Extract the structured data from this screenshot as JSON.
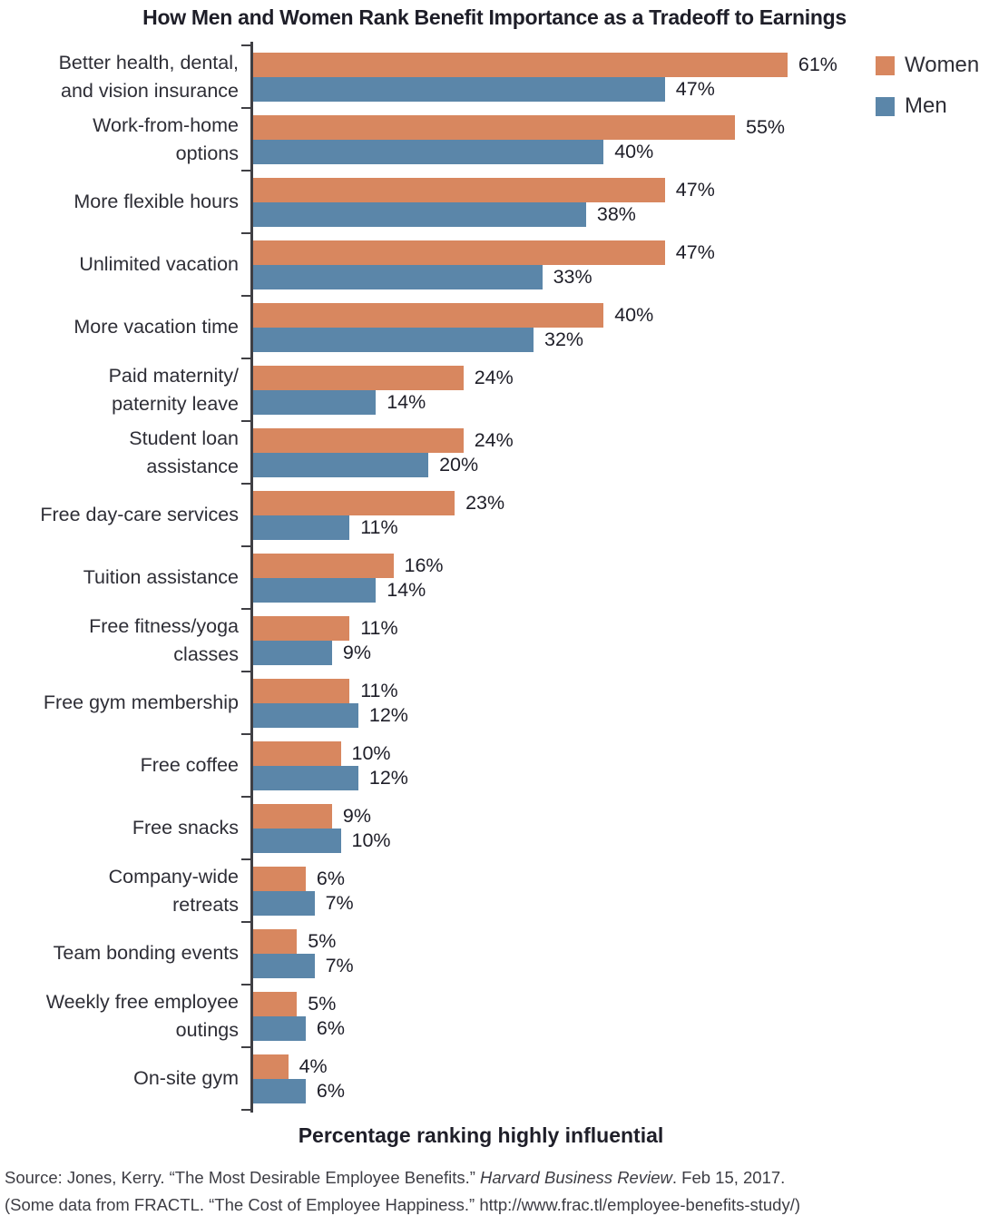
{
  "chart_data": {
    "type": "bar",
    "orientation": "horizontal",
    "title": "How Men and Women Rank Benefit Importance as a Tradeoff to Earnings",
    "xlabel": "Percentage ranking highly influential",
    "categories": [
      "Better health, dental,\nand vision insurance",
      "Work-from-home\noptions",
      "More flexible hours",
      "Unlimited vacation",
      "More vacation time",
      "Paid maternity/\npaternity leave",
      "Student loan\nassistance",
      "Free day-care services",
      "Tuition assistance",
      "Free fitness/yoga\nclasses",
      "Free gym membership",
      "Free coffee",
      "Free snacks",
      "Company-wide\nretreats",
      "Team bonding events",
      "Weekly free employee\noutings",
      "On-site gym"
    ],
    "series": [
      {
        "name": "Women",
        "color": "#d8875f",
        "values": [
          61,
          55,
          47,
          47,
          40,
          24,
          24,
          23,
          16,
          11,
          11,
          10,
          9,
          6,
          5,
          5,
          4
        ]
      },
      {
        "name": "Men",
        "color": "#5b86a9",
        "values": [
          47,
          40,
          38,
          33,
          32,
          14,
          20,
          11,
          14,
          9,
          12,
          12,
          10,
          7,
          7,
          6,
          6
        ]
      }
    ],
    "value_suffix": "%",
    "xlim": [
      0,
      84
    ],
    "grid": false,
    "legend_position": "top-right"
  },
  "footer": {
    "line1_prefix": "Source: Jones, Kerry. “The Most Desirable Employee Benefits.” ",
    "line1_italic": "Harvard Business Review",
    "line1_suffix": ". Feb 15, 2017.",
    "line2": "(Some data from FRACTL. “The Cost of Employee Happiness.” http://www.frac.tl/employee-benefits-study/)"
  }
}
